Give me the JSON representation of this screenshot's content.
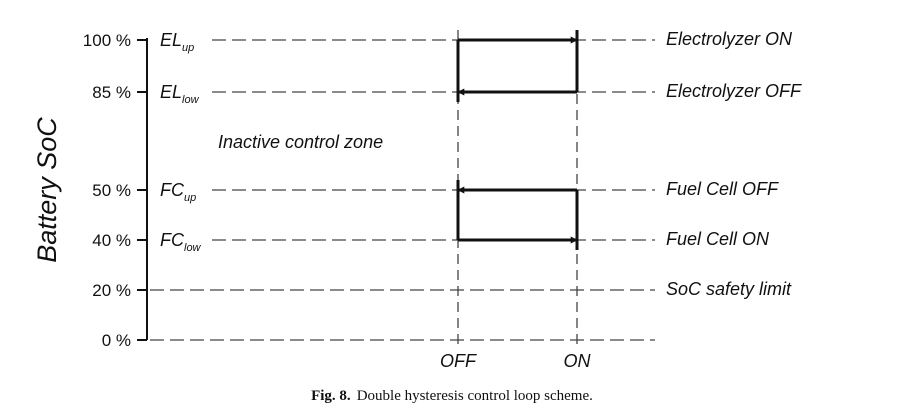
{
  "axis_title": "Battery SoC",
  "levels": [
    {
      "value": "100 %",
      "key": "el_up",
      "var_main": "EL",
      "var_sub": "up",
      "state_label": "Electrolyzer ON"
    },
    {
      "value": "85 %",
      "key": "el_low",
      "var_main": "EL",
      "var_sub": "low",
      "state_label": "Electrolyzer OFF"
    },
    {
      "value": "50 %",
      "key": "fc_up",
      "var_main": "FC",
      "var_sub": "up",
      "state_label": "Fuel Cell OFF"
    },
    {
      "value": "40 %",
      "key": "fc_low",
      "var_main": "FC",
      "var_sub": "low",
      "state_label": "Fuel Cell ON"
    },
    {
      "value": "20 %",
      "key": "safety",
      "var_main": "",
      "var_sub": "",
      "state_label": "SoC safety limit"
    },
    {
      "value": "0 %",
      "key": "zero",
      "var_main": "",
      "var_sub": "",
      "state_label": ""
    }
  ],
  "zone_label": "Inactive control zone",
  "x_labels": {
    "off": "OFF",
    "on": "ON"
  },
  "caption": {
    "label": "Fig. 8.",
    "text": "Double hysteresis control loop scheme."
  }
}
